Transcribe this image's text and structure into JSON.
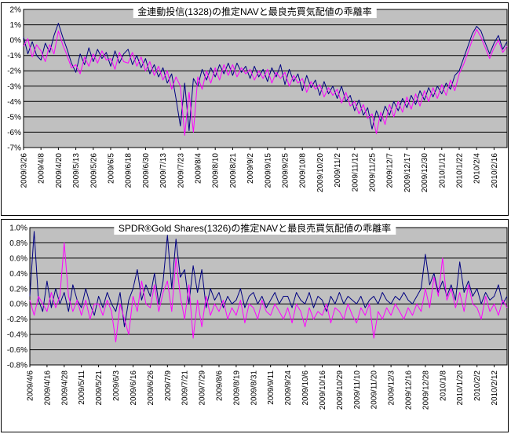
{
  "page": {
    "background": "#FFFFFF"
  },
  "chart_data": [
    {
      "type": "line",
      "title": "金連動投信(1328)の推定NAVと最良売買気配値の乖離率",
      "xlabel": "",
      "ylabel": "",
      "legend": "none",
      "grid": "horizontal",
      "colors": {
        "plot_bg": "#C0C0C0",
        "grid": "#000000",
        "axis": "#000000",
        "title_bg": "#FFFFFF"
      },
      "y_axis": {
        "max": 2,
        "min": -7,
        "tick_labels": [
          "2%",
          "1%",
          "0%",
          "-1%",
          "-2%",
          "-3%",
          "-4%",
          "-5%",
          "-6%",
          "-7%"
        ],
        "tick_values": [
          2,
          1,
          0,
          -1,
          -2,
          -3,
          -4,
          -5,
          -6,
          -7
        ]
      },
      "x_axis": {
        "points_per_label": 4,
        "labels": [
          "2009/3/26",
          "2009/4/8",
          "2009/4/20",
          "2009/5/13",
          "2009/5/26",
          "2009/6/5",
          "2009/6/18",
          "2009/6/30",
          "2009/7/13",
          "2009/7/23",
          "2009/8/4",
          "2009/8/10",
          "2009/8/21",
          "2009/9/2",
          "2009/9/15",
          "2009/9/25",
          "2009/10/8",
          "2009/10/20",
          "2009/11/2",
          "2009/11/12",
          "2009/11/25",
          "2009/12/7",
          "2009/12/17",
          "2009/12/30",
          "2010/1/12",
          "2010/1/22",
          "2010/2/4",
          "2010/2/16"
        ]
      },
      "series": [
        {
          "name": "navy",
          "color": "#000080",
          "values": [
            0.2,
            -0.9,
            -0.1,
            -1.0,
            -1.3,
            -0.2,
            -0.8,
            0.3,
            1.1,
            0.2,
            -0.6,
            -1.5,
            -2.1,
            -0.9,
            -1.6,
            -0.5,
            -1.4,
            -0.6,
            -1.2,
            -0.8,
            -1.7,
            -0.7,
            -1.5,
            -0.9,
            -0.6,
            -1.6,
            -1.0,
            -1.8,
            -1.2,
            -2.2,
            -1.6,
            -2.4,
            -1.8,
            -2.8,
            -2.2,
            -3.8,
            -5.6,
            -2.8,
            -5.9,
            -2.5,
            -3.0,
            -1.9,
            -2.6,
            -1.8,
            -2.4,
            -1.6,
            -2.2,
            -1.5,
            -2.3,
            -1.5,
            -2.1,
            -1.7,
            -2.5,
            -1.7,
            -2.4,
            -1.9,
            -2.7,
            -1.8,
            -2.4,
            -1.6,
            -2.9,
            -1.9,
            -2.7,
            -2.2,
            -3.3,
            -2.3,
            -3.1,
            -2.6,
            -3.6,
            -2.7,
            -3.5,
            -3.0,
            -3.8,
            -3.0,
            -4.0,
            -3.6,
            -4.6,
            -3.9,
            -4.9,
            -4.4,
            -5.8,
            -4.6,
            -5.3,
            -4.3,
            -4.9,
            -4.0,
            -4.6,
            -3.8,
            -4.4,
            -3.6,
            -4.2,
            -3.3,
            -3.9,
            -3.1,
            -3.7,
            -3.0,
            -3.5,
            -2.8,
            -3.2,
            -2.3,
            -2.0,
            -1.2,
            -0.4,
            0.4,
            0.9,
            0.6,
            -0.2,
            -0.9,
            -0.2,
            0.3,
            -0.6,
            -0.1
          ]
        },
        {
          "name": "magenta",
          "color": "#FF00FF",
          "values": [
            -0.4,
            0.1,
            -1.1,
            -0.3,
            -0.7,
            -1.4,
            -0.3,
            -0.9,
            0.6,
            -0.3,
            -1.0,
            -1.8,
            -1.6,
            -2.2,
            -1.1,
            -1.7,
            -0.9,
            -1.5,
            -0.7,
            -1.3,
            -1.2,
            -1.9,
            -0.8,
            -1.4,
            -1.5,
            -0.8,
            -1.7,
            -1.1,
            -2.0,
            -1.4,
            -2.3,
            -1.7,
            -2.6,
            -2.0,
            -3.2,
            -2.4,
            -3.0,
            -6.2,
            -3.4,
            -6.0,
            -2.4,
            -3.2,
            -2.0,
            -2.8,
            -1.8,
            -2.6,
            -1.6,
            -2.3,
            -1.6,
            -2.4,
            -1.8,
            -2.2,
            -1.9,
            -2.6,
            -2.0,
            -2.5,
            -1.9,
            -2.8,
            -2.1,
            -2.5,
            -2.1,
            -3.0,
            -2.3,
            -2.8,
            -2.5,
            -3.4,
            -2.7,
            -3.2,
            -2.9,
            -3.7,
            -3.1,
            -3.6,
            -3.2,
            -4.1,
            -3.4,
            -4.3,
            -4.0,
            -4.8,
            -4.2,
            -5.1,
            -4.8,
            -6.1,
            -4.7,
            -5.5,
            -4.2,
            -5.0,
            -4.0,
            -4.7,
            -3.7,
            -4.5,
            -3.5,
            -4.3,
            -3.3,
            -4.0,
            -3.1,
            -3.8,
            -2.9,
            -3.6,
            -2.6,
            -3.3,
            -2.2,
            -1.6,
            -0.8,
            0.0,
            0.7,
            0.2,
            -0.5,
            -1.2,
            -0.5,
            0.0,
            -0.8,
            -0.4
          ]
        }
      ]
    },
    {
      "type": "line",
      "title": "SPDR®Gold Shares(1326)の推定NAVと最良売買気配値の乖離率",
      "xlabel": "",
      "ylabel": "",
      "legend": "none",
      "grid": "horizontal",
      "colors": {
        "plot_bg": "#C0C0C0",
        "grid": "#000000",
        "axis": "#000000",
        "title_bg": "#FFFFFF"
      },
      "y_axis": {
        "max": 1.0,
        "min": -0.8,
        "tick_labels": [
          "1.0%",
          "0.8%",
          "0.6%",
          "0.4%",
          "0.2%",
          "0.0%",
          "-0.2%",
          "-0.4%",
          "-0.6%",
          "-0.8%"
        ],
        "tick_values": [
          1.0,
          0.8,
          0.6,
          0.4,
          0.2,
          0.0,
          -0.2,
          -0.4,
          -0.6,
          -0.8
        ]
      },
      "x_axis": {
        "points_per_label": 4,
        "labels": [
          "2009/4/6",
          "2009/4/16",
          "2009/4/28",
          "2009/5/11",
          "2009/5/21",
          "2009/6/3",
          "2009/6/16",
          "2009/6/26",
          "2009/7/9",
          "2009/7/21",
          "2009/7/29",
          "2009/8/6",
          "2009/8/19",
          "2009/8/31",
          "2009/9/11",
          "2009/9/24",
          "2009/10/6",
          "2009/10/16",
          "2009/10/29",
          "2009/11/10",
          "2009/11/20",
          "2009/12/3",
          "2009/12/16",
          "2009/12/28",
          "2010/1/8",
          "2010/1/20",
          "2010/2/2",
          "2010/2/12"
        ]
      },
      "series": [
        {
          "name": "navy",
          "color": "#000080",
          "values": [
            0.1,
            0.95,
            0.05,
            -0.1,
            0.3,
            -0.05,
            0.2,
            0.0,
            0.15,
            -0.1,
            0.25,
            0.05,
            -0.05,
            0.2,
            0.0,
            -0.15,
            0.1,
            -0.05,
            0.15,
            0.0,
            -0.1,
            0.15,
            -0.3,
            0.05,
            0.2,
            0.45,
            0.05,
            0.25,
            0.1,
            0.4,
            0.0,
            0.3,
            0.9,
            0.2,
            0.85,
            0.35,
            0.45,
            0.0,
            0.5,
            0.15,
            0.45,
            -0.05,
            0.2,
            0.05,
            0.15,
            -0.05,
            0.1,
            0.0,
            0.05,
            0.2,
            -0.05,
            0.1,
            0.15,
            0.0,
            0.1,
            -0.05,
            0.05,
            0.15,
            0.0,
            0.1,
            0.1,
            -0.05,
            0.15,
            0.05,
            0.0,
            0.15,
            -0.05,
            0.1,
            0.05,
            -0.1,
            0.1,
            0.0,
            0.15,
            0.0,
            0.1,
            0.05,
            0.0,
            0.1,
            -0.05,
            0.05,
            0.1,
            0.0,
            0.15,
            0.05,
            0.0,
            0.1,
            0.05,
            0.15,
            0.05,
            0.0,
            0.1,
            0.2,
            0.65,
            0.25,
            0.4,
            0.15,
            0.3,
            0.1,
            0.25,
            0.05,
            0.55,
            0.15,
            0.3,
            0.1,
            0.2,
            0.0,
            0.15,
            0.05,
            0.1,
            0.25,
            0.0,
            0.1
          ]
        },
        {
          "name": "magenta",
          "color": "#FF00FF",
          "values": [
            0.05,
            -0.15,
            0.1,
            0.0,
            -0.1,
            0.15,
            -0.05,
            0.1,
            0.8,
            0.1,
            -0.1,
            0.05,
            -0.15,
            0.05,
            -0.2,
            0.0,
            0.0,
            -0.15,
            0.05,
            -0.1,
            -0.5,
            0.0,
            -0.2,
            -0.4,
            0.1,
            -0.1,
            0.3,
            0.0,
            -0.05,
            0.25,
            -0.1,
            0.15,
            0.3,
            -0.1,
            0.6,
            0.1,
            -0.2,
            0.25,
            -0.45,
            0.05,
            -0.3,
            0.1,
            -0.15,
            0.0,
            -0.1,
            0.05,
            -0.2,
            -0.05,
            -0.15,
            0.05,
            -0.25,
            0.0,
            -0.05,
            -0.2,
            0.05,
            -0.1,
            -0.15,
            0.0,
            -0.1,
            -0.2,
            -0.05,
            -0.25,
            0.0,
            -0.1,
            -0.3,
            -0.05,
            -0.2,
            -0.1,
            -0.15,
            0.0,
            -0.25,
            -0.05,
            -0.1,
            -0.2,
            0.0,
            -0.15,
            -0.25,
            -0.05,
            -0.15,
            0.0,
            -0.45,
            -0.1,
            -0.2,
            -0.05,
            -0.15,
            0.0,
            -0.1,
            -0.2,
            -0.05,
            -0.15,
            0.0,
            -0.1,
            0.2,
            -0.05,
            0.35,
            0.1,
            0.6,
            0.05,
            0.2,
            -0.05,
            0.15,
            -0.1,
            0.25,
            0.0,
            -0.05,
            -0.2,
            0.1,
            -0.1,
            0.0,
            -0.15,
            0.05,
            -0.05
          ]
        }
      ]
    }
  ]
}
